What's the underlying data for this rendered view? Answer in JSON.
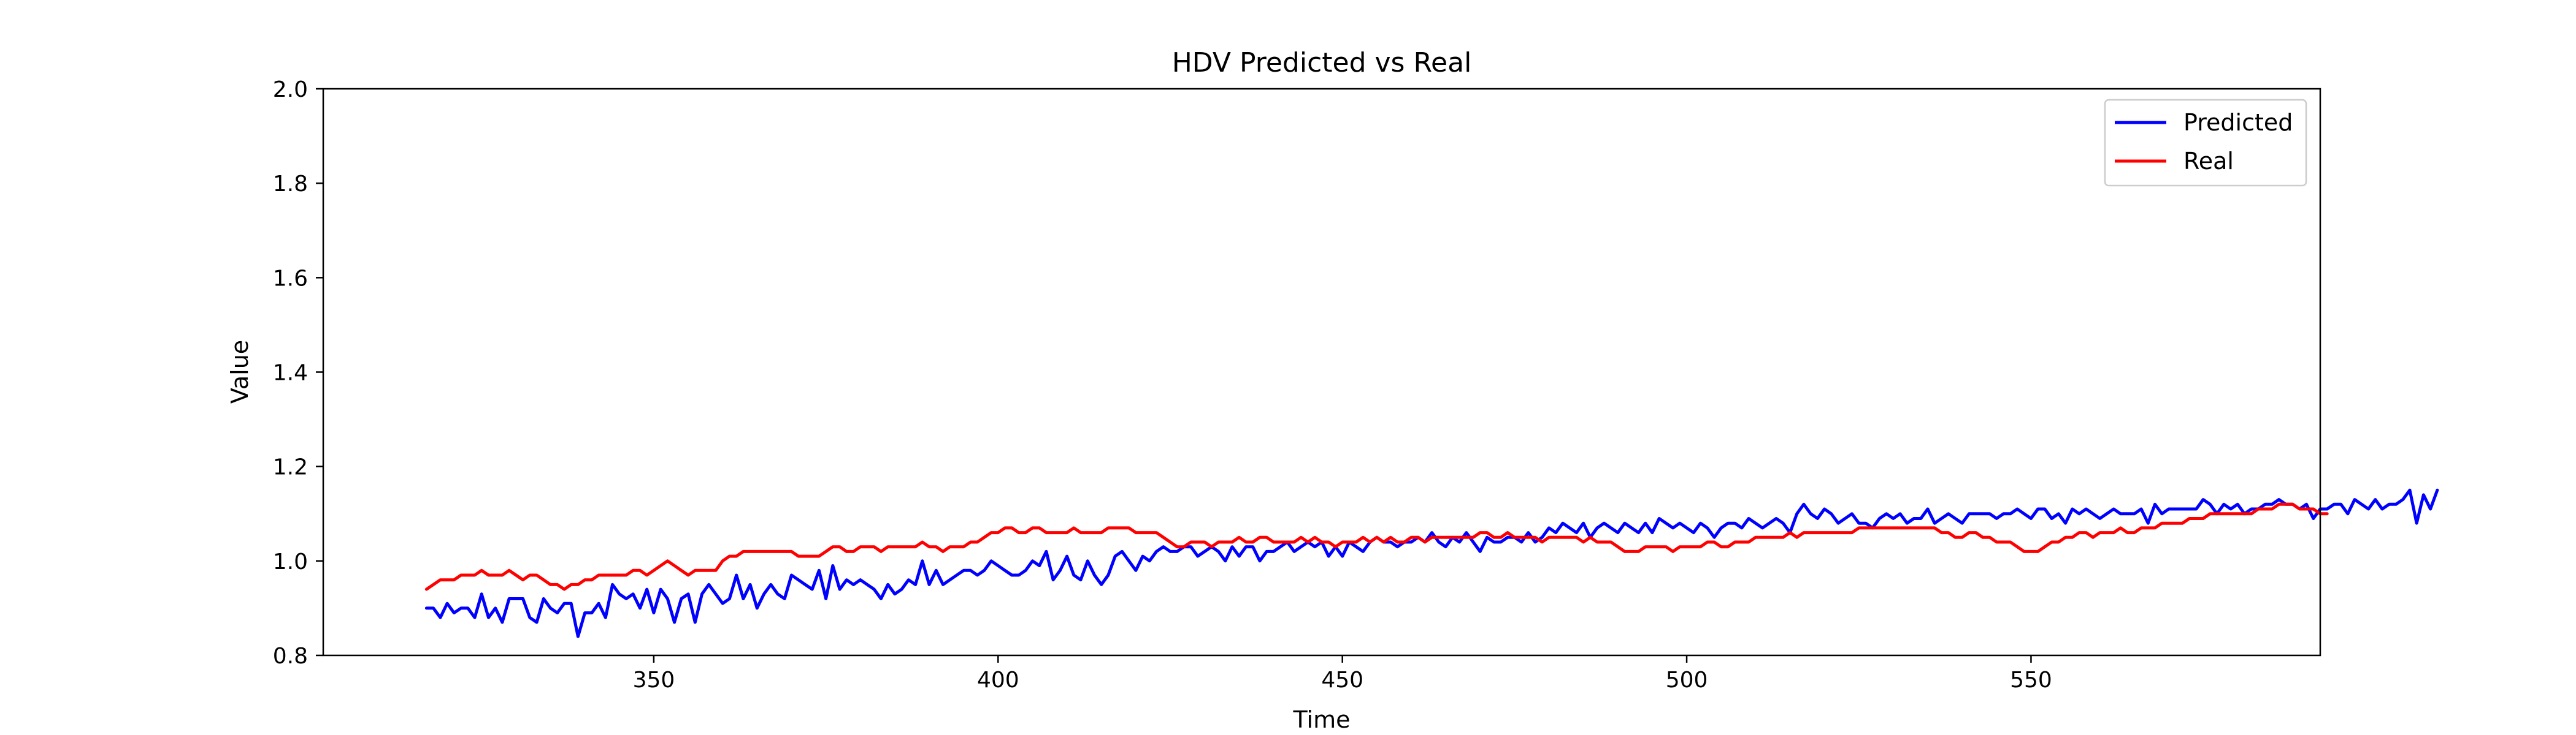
{
  "chart_data": {
    "type": "line",
    "title": "HDV Predicted vs Real",
    "xlabel": "Time",
    "ylabel": "Value",
    "xlim": [
      302,
      592
    ],
    "ylim": [
      0.8,
      2.0
    ],
    "xticks": [
      350,
      400,
      450,
      500,
      550
    ],
    "yticks": [
      0.8,
      1.0,
      1.2,
      1.4,
      1.6,
      1.8,
      2.0
    ],
    "xtick_labels": [
      "350",
      "400",
      "450",
      "500",
      "550"
    ],
    "ytick_labels": [
      "0.8",
      "1.0",
      "1.2",
      "1.4",
      "1.6",
      "1.8",
      "2.0"
    ],
    "grid": false,
    "legend_position": "top-right",
    "x_start": 317,
    "series": [
      {
        "name": "Predicted",
        "color": "#0000ff",
        "values": [
          0.9,
          0.9,
          0.88,
          0.91,
          0.89,
          0.9,
          0.9,
          0.88,
          0.93,
          0.88,
          0.9,
          0.87,
          0.92,
          0.92,
          0.92,
          0.88,
          0.87,
          0.92,
          0.9,
          0.89,
          0.91,
          0.91,
          0.84,
          0.89,
          0.89,
          0.91,
          0.88,
          0.95,
          0.93,
          0.92,
          0.93,
          0.9,
          0.94,
          0.89,
          0.94,
          0.92,
          0.87,
          0.92,
          0.93,
          0.87,
          0.93,
          0.95,
          0.93,
          0.91,
          0.92,
          0.97,
          0.92,
          0.95,
          0.9,
          0.93,
          0.95,
          0.93,
          0.92,
          0.97,
          0.96,
          0.95,
          0.94,
          0.98,
          0.92,
          0.99,
          0.94,
          0.96,
          0.95,
          0.96,
          0.95,
          0.94,
          0.92,
          0.95,
          0.93,
          0.94,
          0.96,
          0.95,
          1.0,
          0.95,
          0.98,
          0.95,
          0.96,
          0.97,
          0.98,
          0.98,
          0.97,
          0.98,
          1.0,
          0.99,
          0.98,
          0.97,
          0.97,
          0.98,
          1.0,
          0.99,
          1.02,
          0.96,
          0.98,
          1.01,
          0.97,
          0.96,
          1.0,
          0.97,
          0.95,
          0.97,
          1.01,
          1.02,
          1.0,
          0.98,
          1.01,
          1.0,
          1.02,
          1.03,
          1.02,
          1.02,
          1.03,
          1.03,
          1.01,
          1.02,
          1.03,
          1.02,
          1.0,
          1.03,
          1.01,
          1.03,
          1.03,
          1.0,
          1.02,
          1.02,
          1.03,
          1.04,
          1.02,
          1.03,
          1.04,
          1.03,
          1.04,
          1.01,
          1.03,
          1.01,
          1.04,
          1.03,
          1.02,
          1.04,
          1.05,
          1.04,
          1.04,
          1.03,
          1.04,
          1.04,
          1.05,
          1.04,
          1.06,
          1.04,
          1.03,
          1.05,
          1.04,
          1.06,
          1.04,
          1.02,
          1.05,
          1.04,
          1.04,
          1.05,
          1.05,
          1.04,
          1.06,
          1.04,
          1.05,
          1.07,
          1.06,
          1.08,
          1.07,
          1.06,
          1.08,
          1.05,
          1.07,
          1.08,
          1.07,
          1.06,
          1.08,
          1.07,
          1.06,
          1.08,
          1.06,
          1.09,
          1.08,
          1.07,
          1.08,
          1.07,
          1.06,
          1.08,
          1.07,
          1.05,
          1.07,
          1.08,
          1.08,
          1.07,
          1.09,
          1.08,
          1.07,
          1.08,
          1.09,
          1.08,
          1.06,
          1.1,
          1.12,
          1.1,
          1.09,
          1.11,
          1.1,
          1.08,
          1.09,
          1.1,
          1.08,
          1.08,
          1.07,
          1.09,
          1.1,
          1.09,
          1.1,
          1.08,
          1.09,
          1.09,
          1.11,
          1.08,
          1.09,
          1.1,
          1.09,
          1.08,
          1.1,
          1.1,
          1.1,
          1.1,
          1.09,
          1.1,
          1.1,
          1.11,
          1.1,
          1.09,
          1.11,
          1.11,
          1.09,
          1.1,
          1.08,
          1.11,
          1.1,
          1.11,
          1.1,
          1.09,
          1.1,
          1.11,
          1.1,
          1.1,
          1.1,
          1.11,
          1.08,
          1.12,
          1.1,
          1.11,
          1.11,
          1.11,
          1.11,
          1.11,
          1.13,
          1.12,
          1.1,
          1.12,
          1.11,
          1.12,
          1.1,
          1.11,
          1.11,
          1.12,
          1.12,
          1.13,
          1.12,
          1.12,
          1.11,
          1.12,
          1.09,
          1.11,
          1.11,
          1.12,
          1.12,
          1.1,
          1.13,
          1.12,
          1.11,
          1.13,
          1.11,
          1.12,
          1.12,
          1.13,
          1.15,
          1.08,
          1.14,
          1.11,
          1.15
        ]
      },
      {
        "name": "Real",
        "color": "#ff0000",
        "values": [
          0.94,
          0.95,
          0.96,
          0.96,
          0.96,
          0.97,
          0.97,
          0.97,
          0.98,
          0.97,
          0.97,
          0.97,
          0.98,
          0.97,
          0.96,
          0.97,
          0.97,
          0.96,
          0.95,
          0.95,
          0.94,
          0.95,
          0.95,
          0.96,
          0.96,
          0.97,
          0.97,
          0.97,
          0.97,
          0.97,
          0.98,
          0.98,
          0.97,
          0.98,
          0.99,
          1.0,
          0.99,
          0.98,
          0.97,
          0.98,
          0.98,
          0.98,
          0.98,
          1.0,
          1.01,
          1.01,
          1.02,
          1.02,
          1.02,
          1.02,
          1.02,
          1.02,
          1.02,
          1.02,
          1.01,
          1.01,
          1.01,
          1.01,
          1.02,
          1.03,
          1.03,
          1.02,
          1.02,
          1.03,
          1.03,
          1.03,
          1.02,
          1.03,
          1.03,
          1.03,
          1.03,
          1.03,
          1.04,
          1.03,
          1.03,
          1.02,
          1.03,
          1.03,
          1.03,
          1.04,
          1.04,
          1.05,
          1.06,
          1.06,
          1.07,
          1.07,
          1.06,
          1.06,
          1.07,
          1.07,
          1.06,
          1.06,
          1.06,
          1.06,
          1.07,
          1.06,
          1.06,
          1.06,
          1.06,
          1.07,
          1.07,
          1.07,
          1.07,
          1.06,
          1.06,
          1.06,
          1.06,
          1.05,
          1.04,
          1.03,
          1.03,
          1.04,
          1.04,
          1.04,
          1.03,
          1.04,
          1.04,
          1.04,
          1.05,
          1.04,
          1.04,
          1.05,
          1.05,
          1.04,
          1.04,
          1.04,
          1.04,
          1.05,
          1.04,
          1.05,
          1.04,
          1.04,
          1.03,
          1.04,
          1.04,
          1.04,
          1.05,
          1.04,
          1.05,
          1.04,
          1.05,
          1.04,
          1.04,
          1.05,
          1.05,
          1.04,
          1.05,
          1.05,
          1.05,
          1.05,
          1.05,
          1.05,
          1.05,
          1.06,
          1.06,
          1.05,
          1.05,
          1.06,
          1.05,
          1.05,
          1.05,
          1.05,
          1.04,
          1.05,
          1.05,
          1.05,
          1.05,
          1.05,
          1.04,
          1.05,
          1.04,
          1.04,
          1.04,
          1.03,
          1.02,
          1.02,
          1.02,
          1.03,
          1.03,
          1.03,
          1.03,
          1.02,
          1.03,
          1.03,
          1.03,
          1.03,
          1.04,
          1.04,
          1.03,
          1.03,
          1.04,
          1.04,
          1.04,
          1.05,
          1.05,
          1.05,
          1.05,
          1.05,
          1.06,
          1.05,
          1.06,
          1.06,
          1.06,
          1.06,
          1.06,
          1.06,
          1.06,
          1.06,
          1.07,
          1.07,
          1.07,
          1.07,
          1.07,
          1.07,
          1.07,
          1.07,
          1.07,
          1.07,
          1.07,
          1.07,
          1.06,
          1.06,
          1.05,
          1.05,
          1.06,
          1.06,
          1.05,
          1.05,
          1.04,
          1.04,
          1.04,
          1.03,
          1.02,
          1.02,
          1.02,
          1.03,
          1.04,
          1.04,
          1.05,
          1.05,
          1.06,
          1.06,
          1.05,
          1.06,
          1.06,
          1.06,
          1.07,
          1.06,
          1.06,
          1.07,
          1.07,
          1.07,
          1.08,
          1.08,
          1.08,
          1.08,
          1.09,
          1.09,
          1.09,
          1.1,
          1.1,
          1.1,
          1.1,
          1.1,
          1.1,
          1.1,
          1.11,
          1.11,
          1.11,
          1.12,
          1.12,
          1.12,
          1.11,
          1.11,
          1.11,
          1.1,
          1.1
        ]
      }
    ]
  }
}
